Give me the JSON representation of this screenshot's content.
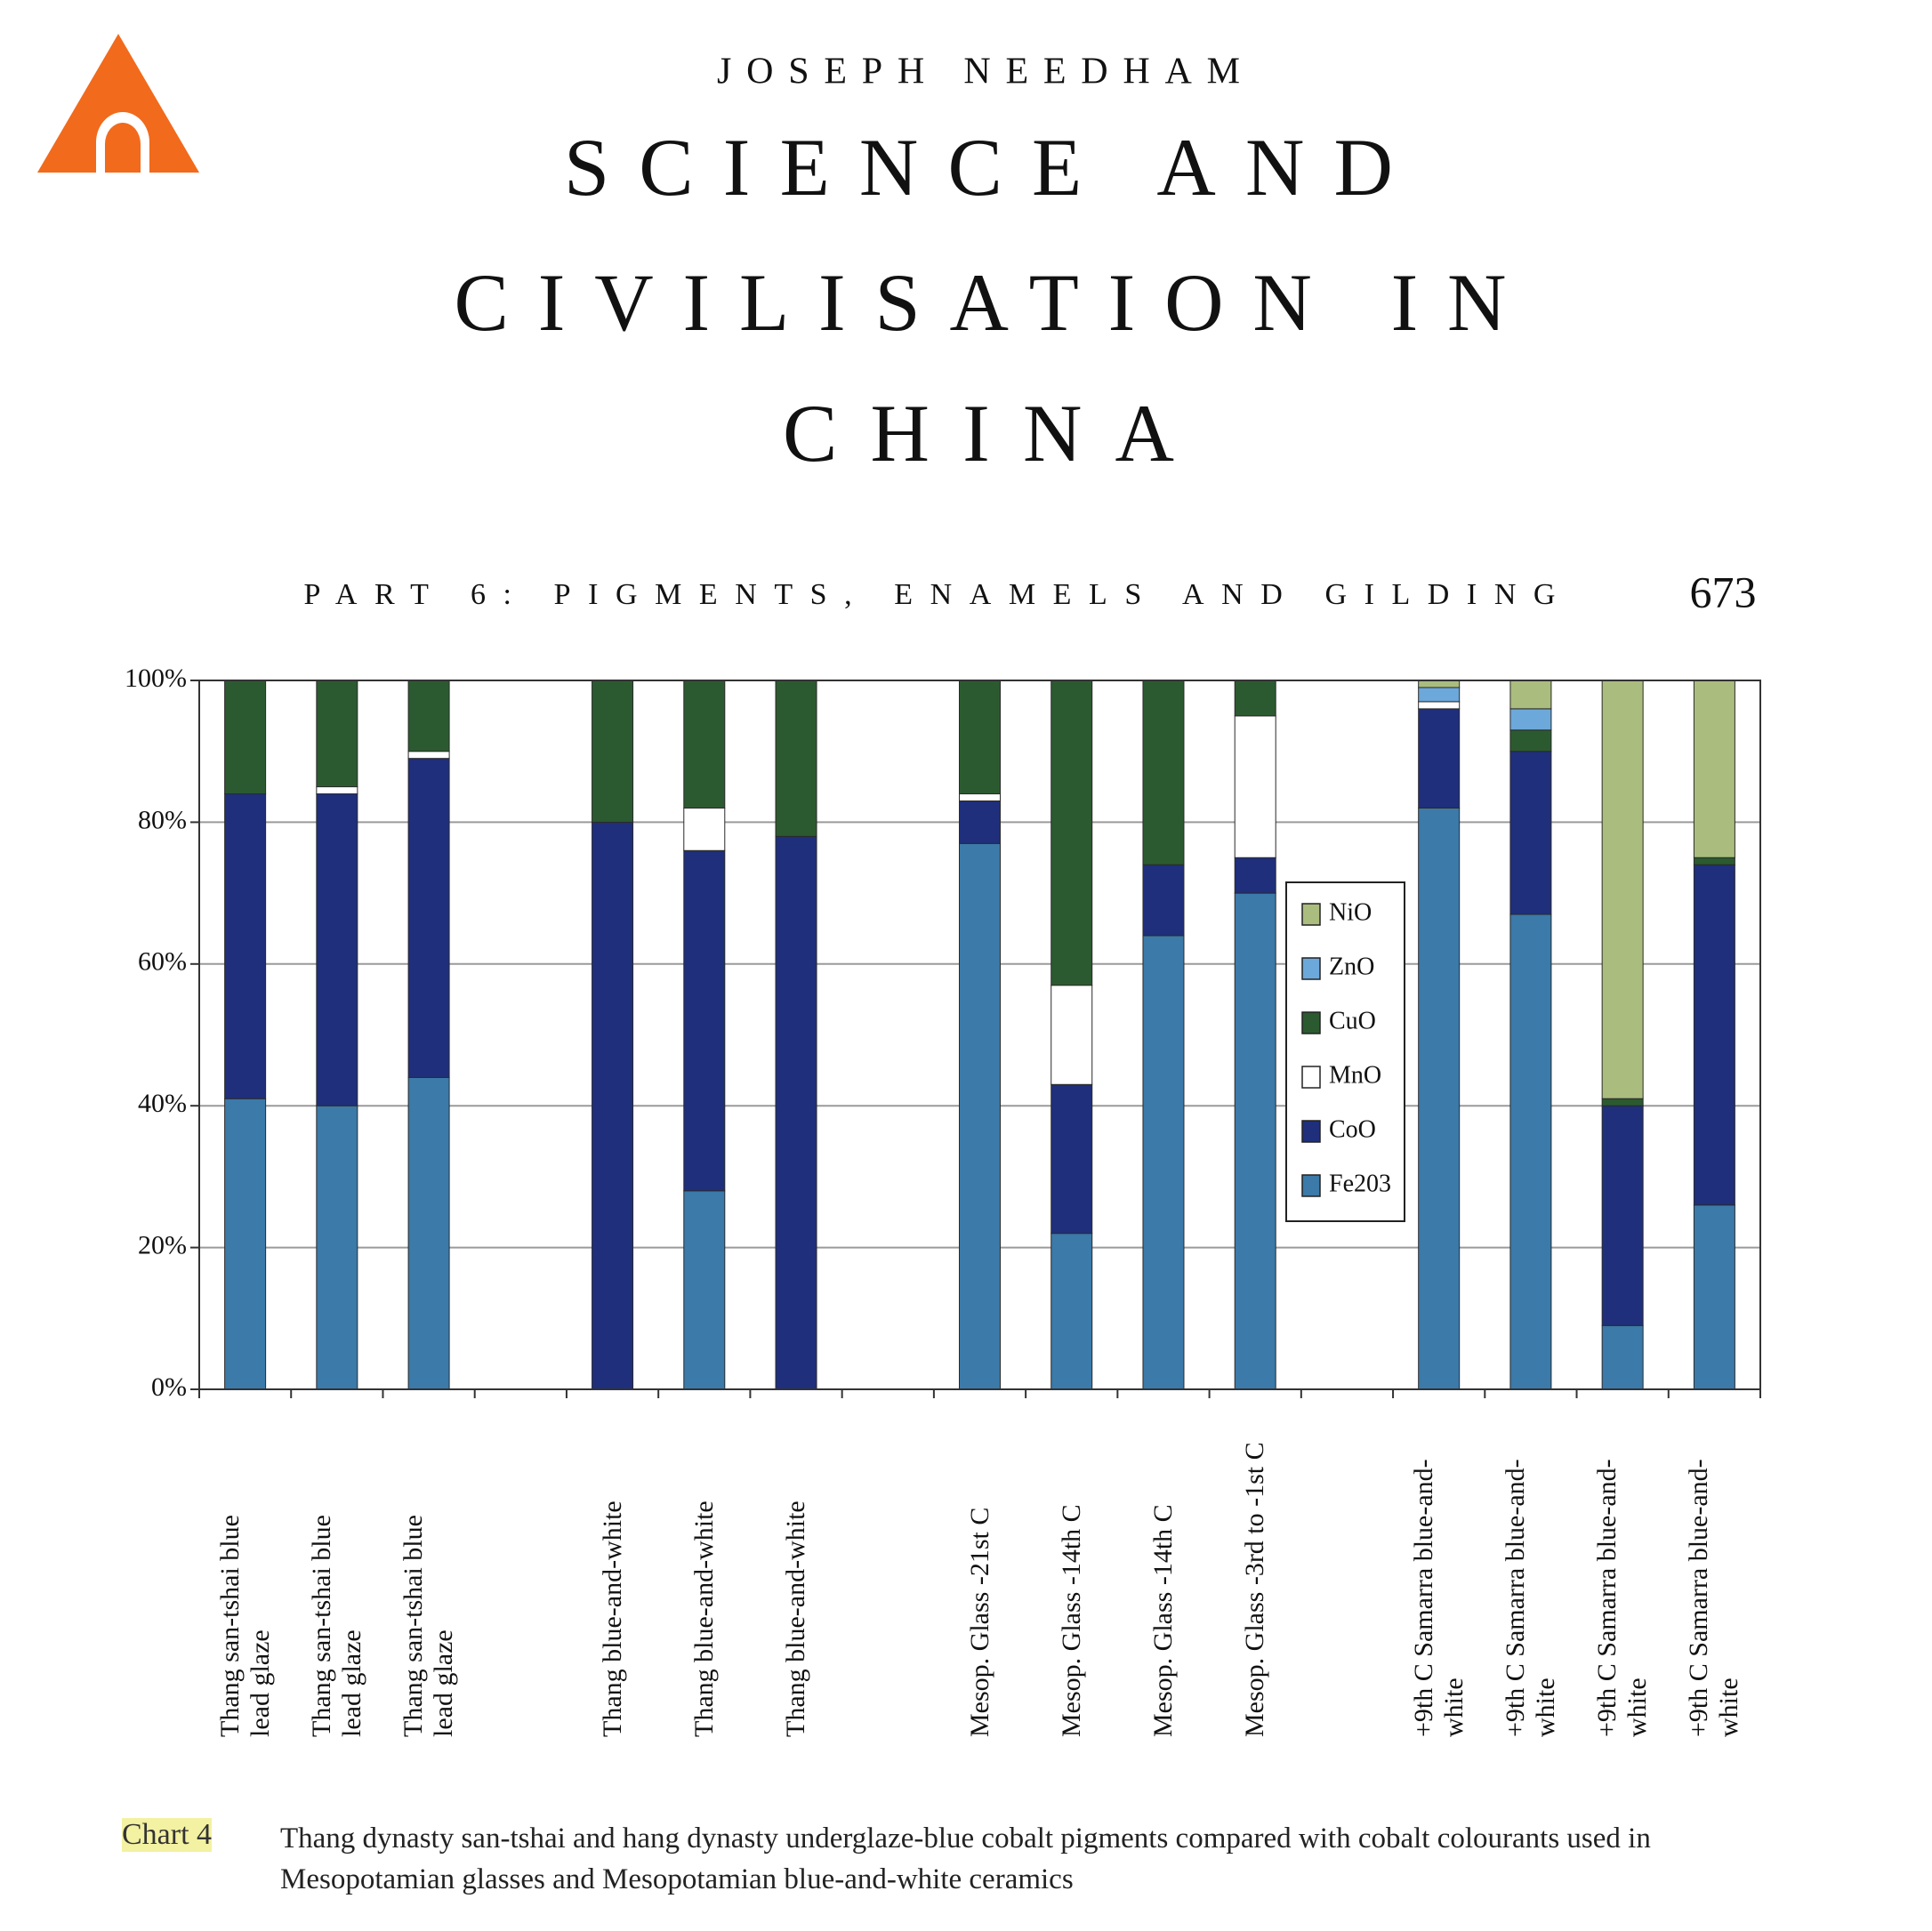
{
  "header": {
    "author": "JOSEPH NEEDHAM",
    "title": [
      "SCIENCE AND",
      "CIVILISATION IN",
      "CHINA"
    ],
    "running_head": "PART 6: PIGMENTS, ENAMELS AND GILDING",
    "page_number": "673"
  },
  "chart_data": {
    "type": "stacked_bar",
    "categories": [
      "Thang san-tshai blue\nlead glaze",
      "Thang san-tshai blue\nlead glaze",
      "Thang san-tshai blue\nlead glaze",
      null,
      "Thang blue-and-white",
      "Thang blue-and-white",
      "Thang blue-and-white",
      null,
      "Mesop. Glass -21st C",
      "Mesop. Glass -14th C",
      "Mesop. Glass -14th C",
      "Mesop. Glass -3rd to -1st C",
      null,
      "+9th C Samarra blue-and-\nwhite",
      "+9th C Samarra blue-and-\nwhite",
      "+9th C Samarra blue-and-\nwhite",
      "+9th C Samarra blue-and-\nwhite"
    ],
    "series": [
      {
        "name": "Fe203",
        "color": "#3b7aa9",
        "values": [
          41,
          40,
          44,
          null,
          0,
          28,
          0,
          null,
          77,
          22,
          64,
          70,
          null,
          82,
          67,
          9,
          26
        ]
      },
      {
        "name": "CoO",
        "color": "#1f2f7c",
        "values": [
          43,
          44,
          45,
          null,
          80,
          48,
          78,
          null,
          6,
          21,
          10,
          5,
          null,
          14,
          23,
          31,
          48
        ]
      },
      {
        "name": "MnO",
        "color": "#ffffff",
        "values": [
          0,
          1,
          1,
          null,
          0,
          6,
          0,
          null,
          1,
          14,
          0,
          20,
          null,
          1,
          0,
          0,
          0
        ]
      },
      {
        "name": "CuO",
        "color": "#2c5a30",
        "values": [
          16,
          15,
          10,
          null,
          20,
          18,
          22,
          null,
          16,
          43,
          26,
          5,
          null,
          0,
          3,
          1,
          1
        ]
      },
      {
        "name": "ZnO",
        "color": "#6da8da",
        "values": [
          0,
          0,
          0,
          null,
          0,
          0,
          0,
          null,
          0,
          0,
          0,
          0,
          null,
          2,
          3,
          0,
          0
        ]
      },
      {
        "name": "NiO",
        "color": "#aabd7e",
        "values": [
          0,
          0,
          0,
          null,
          0,
          0,
          0,
          null,
          0,
          0,
          0,
          0,
          null,
          1,
          4,
          59,
          25
        ]
      }
    ],
    "ylim": [
      0,
      100
    ],
    "yticks": [
      {
        "value": 0,
        "label": "0%"
      },
      {
        "value": 20,
        "label": "20%"
      },
      {
        "value": 40,
        "label": "40%"
      },
      {
        "value": 60,
        "label": "60%"
      },
      {
        "value": 80,
        "label": "80%"
      },
      {
        "value": 100,
        "label": "100%"
      }
    ],
    "grid": true
  },
  "caption": {
    "label": "Chart 4",
    "text": "Thang dynasty san-tshai and hang dynasty underglaze-blue cobalt pigments compared with cobalt colourants used in Mesopotamian glasses and Mesopotamian blue-and-white ceramics"
  }
}
